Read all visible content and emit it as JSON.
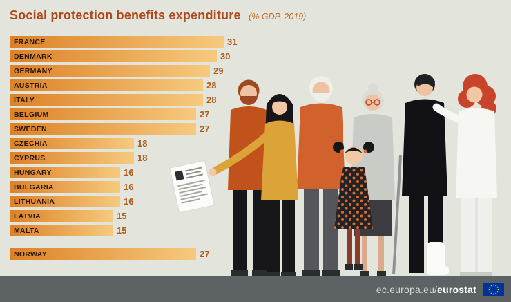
{
  "header": {
    "title": "Social protection benefits expenditure",
    "subtitle": "(% GDP, 2019)"
  },
  "chart_data": {
    "type": "bar",
    "orientation": "horizontal",
    "title": "Social protection benefits expenditure",
    "subtitle": "(% GDP, 2019)",
    "unit": "% of GDP",
    "year": "2019",
    "categories": [
      "FRANCE",
      "DENMARK",
      "GERMANY",
      "AUSTRIA",
      "ITALY",
      "BELGIUM",
      "SWEDEN",
      "CZECHIA",
      "CYPRUS",
      "HUNGARY",
      "BULGARIA",
      "LITHUANIA",
      "LATVIA",
      "MALTA"
    ],
    "values": [
      31,
      30,
      29,
      28,
      28,
      27,
      27,
      18,
      18,
      16,
      16,
      16,
      15,
      15
    ],
    "extra": {
      "label": "NORWAY",
      "value": 27
    },
    "xlim": [
      0,
      32
    ],
    "grid": false,
    "legend": "none"
  },
  "footer": {
    "url_prefix": "ec.europa.eu/",
    "url_brand": "eurostat",
    "logo": "eu-flag-icon"
  },
  "colors": {
    "background": "#e3e5dd",
    "title": "#b0481c",
    "subtitle": "#c06a1f",
    "bar_gradient_start": "#dd8126",
    "bar_gradient_end": "#f6ca7e",
    "value_text": "#ad5a1a",
    "footer_bg": "#5d6265",
    "eu_flag_blue": "#003399",
    "eu_flag_stars": "#ffcc00"
  }
}
